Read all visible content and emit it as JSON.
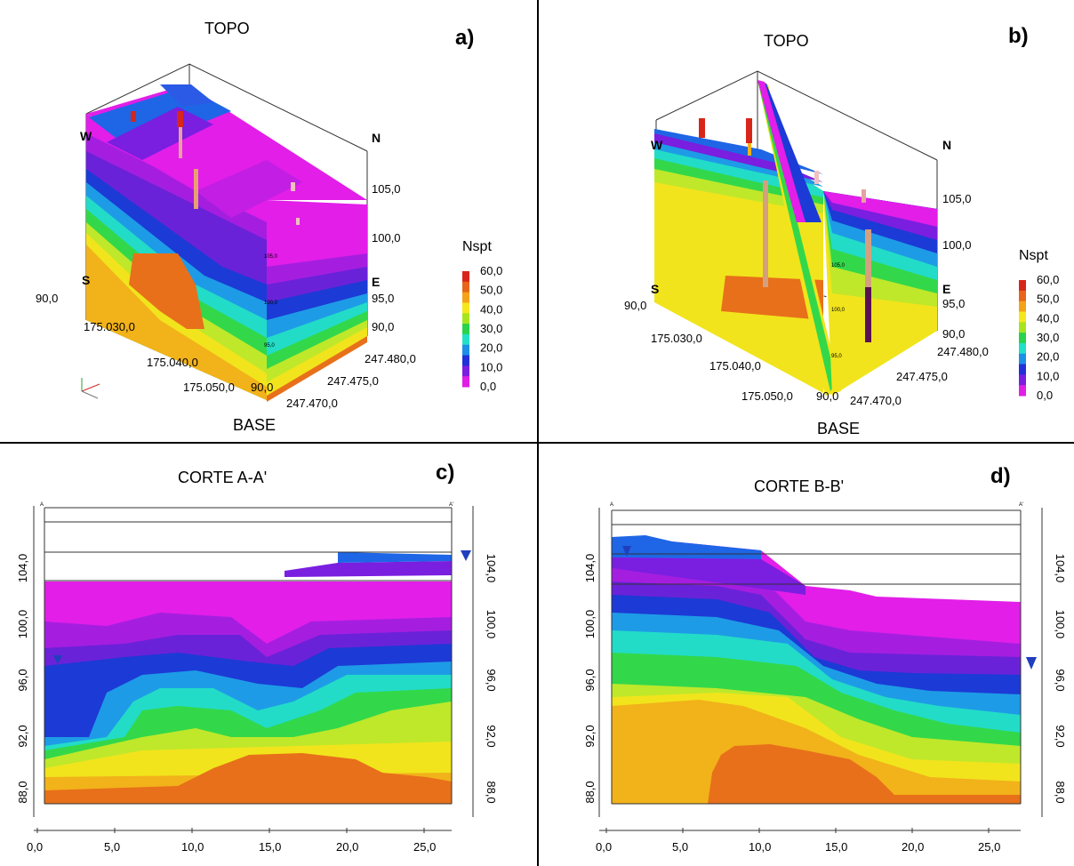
{
  "panels": {
    "a": {
      "title": "TOPO",
      "letter": "a)",
      "base_label": "BASE",
      "dir": {
        "w": "W",
        "n": "N",
        "s": "S",
        "e": "E"
      },
      "vertical_ticks_right": [
        "105,0",
        "100,0",
        "95,0",
        "90,0"
      ],
      "vertical_tick_left": "90,0",
      "bottom_ticks_left": [
        "175.030,0",
        "175.040,0",
        "175.050,0"
      ],
      "bottom_ticks_right": [
        "247.480,0",
        "247.475,0",
        "247.470,0"
      ],
      "bottom_corner": "90,0",
      "face_small_labels": [
        "105,0",
        "100,0",
        "95,0"
      ]
    },
    "b": {
      "title": "TOPO",
      "letter": "b)",
      "base_label": "BASE",
      "dir": {
        "w": "W",
        "n": "N",
        "s": "S",
        "e": "E"
      },
      "vertical_ticks_right": [
        "105,0",
        "100,0",
        "95,0",
        "90,0"
      ],
      "vertical_tick_left": "90,0",
      "bottom_ticks_left": [
        "175.030,0",
        "175.040,0",
        "175.050,0"
      ],
      "bottom_ticks_right": [
        "247.480,0",
        "247.475,0",
        "247.470,0"
      ],
      "bottom_corner": "90,0",
      "face_small_labels": [
        "105,0",
        "100,0",
        "95,0"
      ]
    },
    "c": {
      "title": "CORTE A-A'",
      "letter": "c)",
      "start_marker": "A",
      "end_marker": "A'",
      "x_ticks": [
        "0,0",
        "5,0",
        "10,0",
        "15,0",
        "20,0",
        "25,0"
      ],
      "y_ticks": [
        "104,0",
        "100,0",
        "96,0",
        "92,0",
        "88,0"
      ]
    },
    "d": {
      "title": "CORTE B-B'",
      "letter": "d)",
      "start_marker": "A",
      "end_marker": "A'",
      "x_ticks": [
        "0,0",
        "5,0",
        "10,0",
        "15,0",
        "20,0",
        "25,0"
      ],
      "y_ticks": [
        "104,0",
        "100,0",
        "96,0",
        "92,0",
        "88,0"
      ]
    }
  },
  "legend": {
    "title": "Nspt",
    "values": [
      "60,0",
      "50,0",
      "40,0",
      "30,0",
      "20,0",
      "10,0",
      "0,0"
    ],
    "colors": [
      "#d7261b",
      "#e8641a",
      "#f5a21b",
      "#f4e81c",
      "#a6e51e",
      "#29d34b",
      "#22e0c8",
      "#1c8fe6",
      "#2130d8",
      "#7a1ee0",
      "#e11ee6"
    ]
  },
  "colors": {
    "orange": "#e8701a",
    "yellow_orange": "#f2b21a",
    "yellow": "#f1e41c",
    "yellow_green": "#bfe82a",
    "green": "#32d84a",
    "cyan": "#22dcc8",
    "light_blue": "#1e9be6",
    "blue": "#1c3ad6",
    "purple": "#6a22d8",
    "violet": "#a51ee0",
    "magenta": "#e21ee8",
    "water_marker": "#1f3fbf"
  }
}
